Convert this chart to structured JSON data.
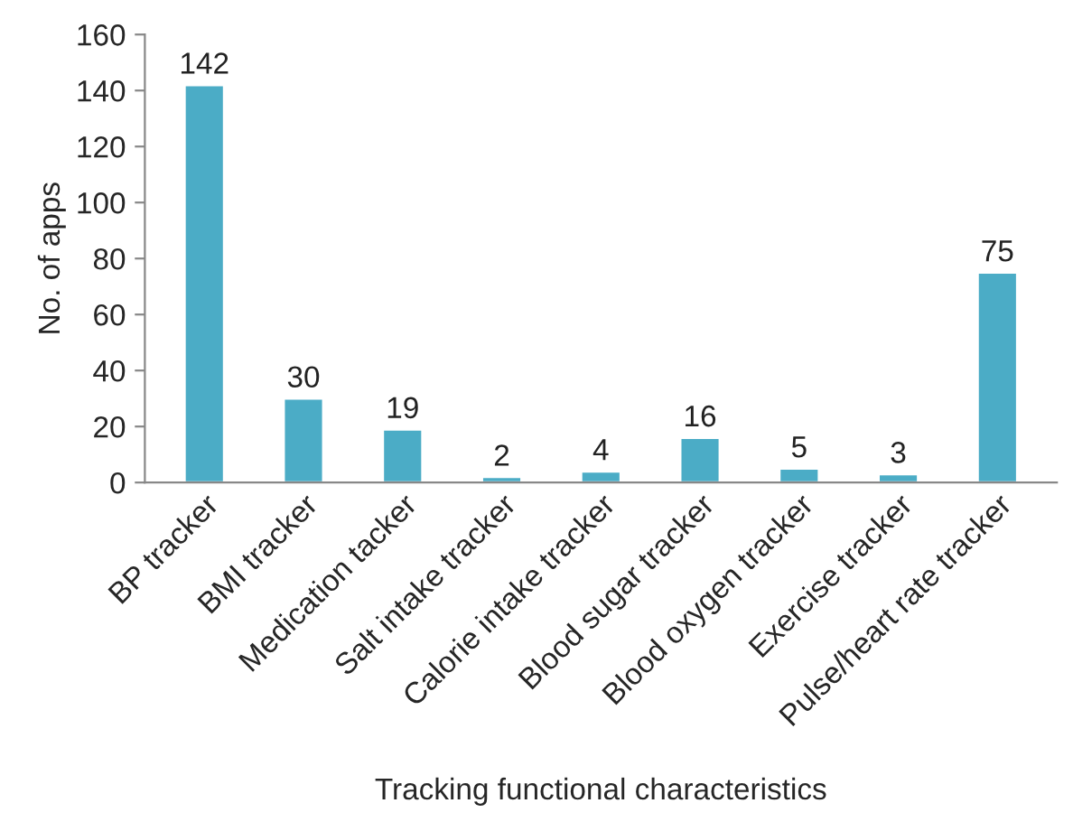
{
  "chart_data": {
    "type": "bar",
    "xlabel": "Tracking functional characteristics",
    "ylabel": "No. of apps",
    "categories": [
      "BP tracker",
      "BMI tracker",
      "Medication tacker",
      "Salt intake tracker",
      "Calorie intake tracker",
      "Blood sugar tracker",
      "Blood oxygen tracker",
      "Exercise tracker",
      "Pulse/heart rate tracker"
    ],
    "values": [
      142,
      30,
      19,
      2,
      4,
      16,
      5,
      3,
      75
    ],
    "color": "#4bacc6",
    "data_labels": true,
    "ylim": [
      0,
      160
    ],
    "yticks": [
      0,
      20,
      40,
      60,
      80,
      100,
      120,
      140,
      160
    ],
    "grid": false,
    "legend": false
  }
}
